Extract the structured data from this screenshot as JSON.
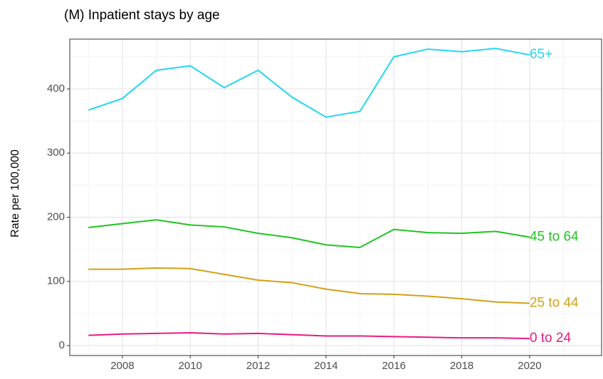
{
  "chart_data": {
    "type": "line",
    "title": "(M) Inpatient stays by age",
    "y_label": "Rate per 100,000",
    "x": [
      2007,
      2008,
      2009,
      2010,
      2011,
      2012,
      2013,
      2014,
      2015,
      2016,
      2017,
      2018,
      2019,
      2020
    ],
    "series": [
      {
        "name": "65+",
        "color": "#22d6f2",
        "values": [
          367,
          385,
          429,
          436,
          402,
          429,
          387,
          356,
          365,
          450,
          462,
          458,
          463,
          453
        ]
      },
      {
        "name": "45 to 64",
        "color": "#1fc41f",
        "values": [
          184,
          190,
          196,
          188,
          185,
          175,
          168,
          157,
          153,
          181,
          176,
          175,
          178,
          169
        ]
      },
      {
        "name": "25 to 44",
        "color": "#d4a017",
        "values": [
          119,
          119,
          121,
          120,
          111,
          102,
          98,
          88,
          81,
          80,
          77,
          73,
          68,
          66
        ]
      },
      {
        "name": "0 to 24",
        "color": "#ea1a84",
        "values": [
          16,
          18,
          19,
          20,
          18,
          19,
          17,
          15,
          15,
          14,
          13,
          12,
          12,
          11
        ]
      }
    ],
    "xlim": [
      2006.45,
      2022.12
    ],
    "ylim": [
      -15.5,
      477.6
    ],
    "xticks": [
      2008,
      2010,
      2012,
      2014,
      2016,
      2018,
      2020
    ],
    "yticks": [
      0,
      100,
      200,
      300,
      400
    ],
    "grid": true
  }
}
